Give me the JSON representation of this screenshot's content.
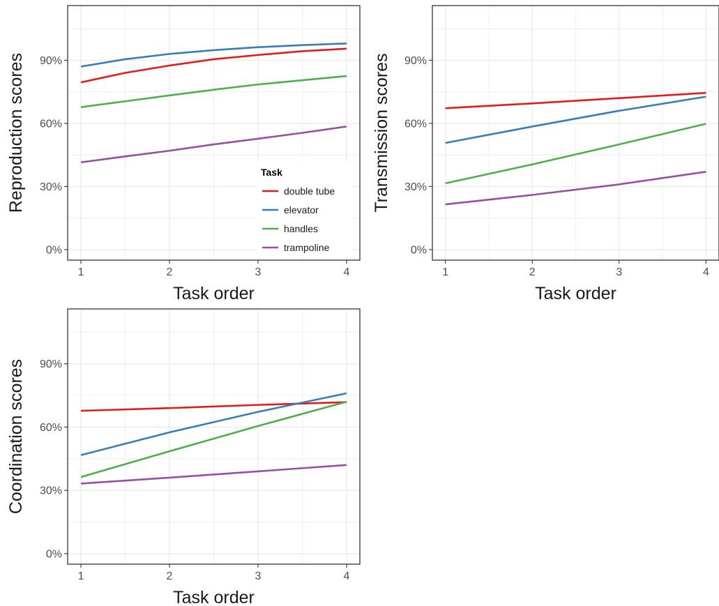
{
  "chart_data": [
    {
      "type": "line",
      "id": "reproduction",
      "xlabel": "Task order",
      "ylabel": "Reproduction scores",
      "xlim": [
        0.85,
        4.15
      ],
      "ylim": [
        -0.05,
        1.16
      ],
      "x_ticks": [
        1,
        2,
        3,
        4
      ],
      "y_ticks": [
        0,
        0.3,
        0.6,
        0.9
      ],
      "y_tick_labels": [
        "0%",
        "30%",
        "60%",
        "90%"
      ],
      "grid": true,
      "series": [
        {
          "name": "double tube",
          "x": [
            1,
            1.5,
            2,
            2.5,
            3,
            3.5,
            4
          ],
          "y": [
            0.795,
            0.84,
            0.875,
            0.905,
            0.925,
            0.943,
            0.955
          ]
        },
        {
          "name": "elevator",
          "x": [
            1,
            1.5,
            2,
            2.5,
            3,
            3.5,
            4
          ],
          "y": [
            0.87,
            0.905,
            0.93,
            0.948,
            0.962,
            0.972,
            0.98
          ]
        },
        {
          "name": "handles",
          "x": [
            1,
            1.5,
            2,
            2.5,
            3,
            3.5,
            4
          ],
          "y": [
            0.677,
            0.705,
            0.733,
            0.76,
            0.785,
            0.805,
            0.825
          ]
        },
        {
          "name": "trampoline",
          "x": [
            1,
            1.5,
            2,
            2.5,
            3,
            3.5,
            4
          ],
          "y": [
            0.415,
            0.443,
            0.47,
            0.5,
            0.527,
            0.555,
            0.585
          ]
        }
      ],
      "legend": {
        "title": "Task",
        "placement": "inside bottom-right"
      }
    },
    {
      "type": "line",
      "id": "transmission",
      "xlabel": "Task order",
      "ylabel": "Transmission scores",
      "xlim": [
        0.85,
        4.15
      ],
      "ylim": [
        -0.05,
        1.16
      ],
      "x_ticks": [
        1,
        2,
        3,
        4
      ],
      "y_ticks": [
        0,
        0.3,
        0.6,
        0.9
      ],
      "y_tick_labels": [
        "0%",
        "30%",
        "60%",
        "90%"
      ],
      "grid": true,
      "series": [
        {
          "name": "double tube",
          "x": [
            1,
            2,
            3,
            4
          ],
          "y": [
            0.672,
            0.695,
            0.72,
            0.745
          ]
        },
        {
          "name": "elevator",
          "x": [
            1,
            2,
            3,
            4
          ],
          "y": [
            0.507,
            0.585,
            0.66,
            0.727
          ]
        },
        {
          "name": "handles",
          "x": [
            1,
            2,
            3,
            4
          ],
          "y": [
            0.315,
            0.405,
            0.5,
            0.598
          ]
        },
        {
          "name": "trampoline",
          "x": [
            1,
            2,
            3,
            4
          ],
          "y": [
            0.215,
            0.26,
            0.31,
            0.37
          ]
        }
      ]
    },
    {
      "type": "line",
      "id": "coordination",
      "xlabel": "Task order",
      "ylabel": "Coordination scores",
      "xlim": [
        0.85,
        4.15
      ],
      "ylim": [
        -0.05,
        1.16
      ],
      "x_ticks": [
        1,
        2,
        3,
        4
      ],
      "y_ticks": [
        0,
        0.3,
        0.6,
        0.9
      ],
      "y_tick_labels": [
        "0%",
        "30%",
        "60%",
        "90%"
      ],
      "grid": true,
      "series": [
        {
          "name": "double tube",
          "x": [
            1,
            2,
            3,
            4
          ],
          "y": [
            0.677,
            0.69,
            0.705,
            0.718
          ]
        },
        {
          "name": "elevator",
          "x": [
            1,
            2,
            3,
            4
          ],
          "y": [
            0.467,
            0.575,
            0.672,
            0.76
          ]
        },
        {
          "name": "handles",
          "x": [
            1,
            2,
            3,
            4
          ],
          "y": [
            0.363,
            0.485,
            0.605,
            0.72
          ]
        },
        {
          "name": "trampoline",
          "x": [
            1,
            2,
            3,
            4
          ],
          "y": [
            0.332,
            0.36,
            0.39,
            0.42
          ]
        }
      ]
    }
  ],
  "colors": {
    "double tube": "#e41a1c",
    "elevator": "#377eb8",
    "handles": "#4daf4a",
    "trampoline": "#984ea3",
    "grid": "#ebebeb",
    "panel_border": "#333333"
  }
}
